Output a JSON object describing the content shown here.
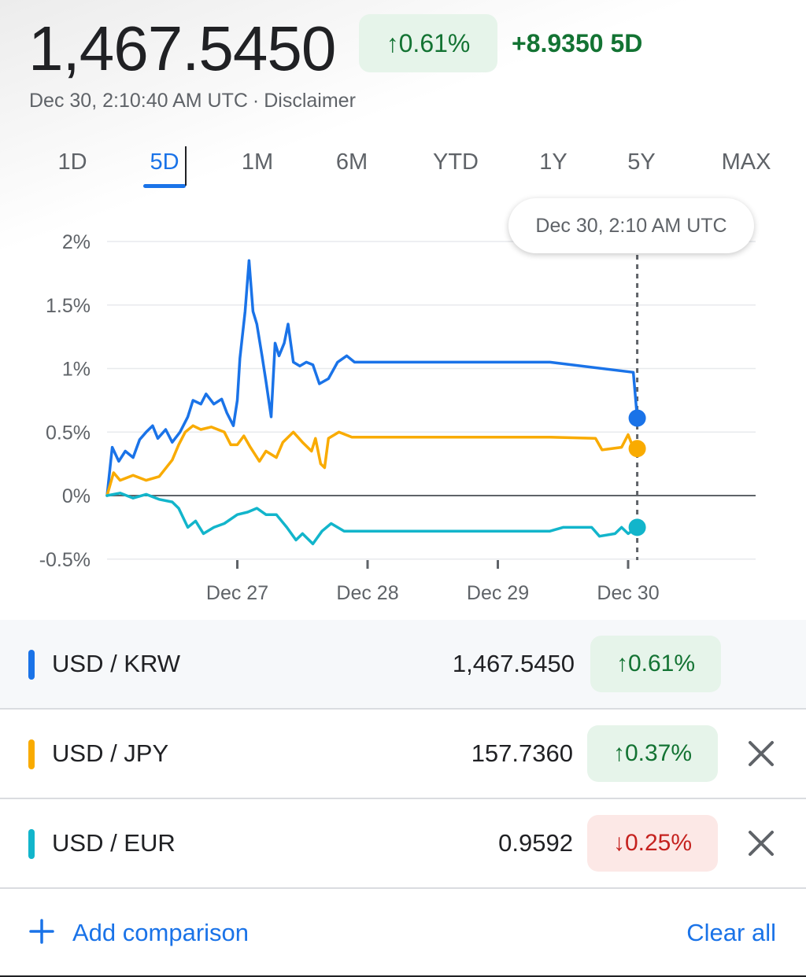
{
  "header": {
    "price": "1,467.5450",
    "pct_change": "0.61%",
    "pct_arrow": "↑",
    "abs_change": "+8.9350 5D",
    "timestamp": "Dec 30, 2:10:40 AM UTC",
    "separator": "·",
    "disclaimer": "Disclaimer"
  },
  "ranges": [
    {
      "label": "1D",
      "active": false
    },
    {
      "label": "5D",
      "active": true
    },
    {
      "label": "1M",
      "active": false
    },
    {
      "label": "6M",
      "active": false
    },
    {
      "label": "YTD",
      "active": false
    },
    {
      "label": "1Y",
      "active": false
    },
    {
      "label": "5Y",
      "active": false
    },
    {
      "label": "MAX",
      "active": false
    }
  ],
  "tooltip": "Dec 30, 2:10 AM UTC",
  "chart_data": {
    "type": "line",
    "y_tick_labels": [
      "2%",
      "1.5%",
      "1%",
      "0.5%",
      "0%",
      "-0.5%"
    ],
    "y_ticks": [
      2,
      1.5,
      1,
      0.5,
      0,
      -0.5
    ],
    "ylim": [
      -0.5,
      2
    ],
    "x_tick_labels": [
      "Dec 27",
      "Dec 28",
      "Dec 29",
      "Dec 30"
    ],
    "x_ticks": [
      1,
      2,
      3,
      4
    ],
    "xlim": [
      0,
      4.07
    ],
    "cursor_x": 4.07,
    "grid": true,
    "series": [
      {
        "name": "USD / KRW",
        "color": "#1a73e8",
        "points": [
          [
            0,
            0
          ],
          [
            0.04,
            0.38
          ],
          [
            0.09,
            0.27
          ],
          [
            0.14,
            0.35
          ],
          [
            0.2,
            0.3
          ],
          [
            0.25,
            0.44
          ],
          [
            0.3,
            0.5
          ],
          [
            0.35,
            0.55
          ],
          [
            0.39,
            0.45
          ],
          [
            0.45,
            0.52
          ],
          [
            0.5,
            0.42
          ],
          [
            0.56,
            0.5
          ],
          [
            0.62,
            0.62
          ],
          [
            0.66,
            0.75
          ],
          [
            0.72,
            0.72
          ],
          [
            0.76,
            0.8
          ],
          [
            0.82,
            0.72
          ],
          [
            0.88,
            0.76
          ],
          [
            0.92,
            0.65
          ],
          [
            0.97,
            0.55
          ],
          [
            1.0,
            0.75
          ],
          [
            1.02,
            1.08
          ],
          [
            1.06,
            1.45
          ],
          [
            1.09,
            1.85
          ],
          [
            1.12,
            1.45
          ],
          [
            1.15,
            1.35
          ],
          [
            1.19,
            1.1
          ],
          [
            1.22,
            0.9
          ],
          [
            1.26,
            0.62
          ],
          [
            1.29,
            1.2
          ],
          [
            1.32,
            1.1
          ],
          [
            1.36,
            1.2
          ],
          [
            1.39,
            1.35
          ],
          [
            1.43,
            1.05
          ],
          [
            1.48,
            1.02
          ],
          [
            1.53,
            1.05
          ],
          [
            1.58,
            1.03
          ],
          [
            1.63,
            0.88
          ],
          [
            1.7,
            0.92
          ],
          [
            1.77,
            1.05
          ],
          [
            1.84,
            1.1
          ],
          [
            1.9,
            1.05
          ],
          [
            2.5,
            1.05
          ],
          [
            3.4,
            1.05
          ],
          [
            4.04,
            0.97
          ],
          [
            4.07,
            0.61
          ]
        ]
      },
      {
        "name": "USD / JPY",
        "color": "#f9ab00",
        "points": [
          [
            0,
            0
          ],
          [
            0.05,
            0.18
          ],
          [
            0.1,
            0.12
          ],
          [
            0.2,
            0.16
          ],
          [
            0.3,
            0.12
          ],
          [
            0.4,
            0.15
          ],
          [
            0.5,
            0.28
          ],
          [
            0.55,
            0.4
          ],
          [
            0.6,
            0.5
          ],
          [
            0.66,
            0.55
          ],
          [
            0.72,
            0.52
          ],
          [
            0.8,
            0.54
          ],
          [
            0.9,
            0.5
          ],
          [
            0.95,
            0.4
          ],
          [
            1.0,
            0.4
          ],
          [
            1.05,
            0.47
          ],
          [
            1.1,
            0.38
          ],
          [
            1.17,
            0.27
          ],
          [
            1.22,
            0.35
          ],
          [
            1.3,
            0.3
          ],
          [
            1.35,
            0.42
          ],
          [
            1.43,
            0.5
          ],
          [
            1.5,
            0.42
          ],
          [
            1.57,
            0.35
          ],
          [
            1.6,
            0.45
          ],
          [
            1.64,
            0.25
          ],
          [
            1.67,
            0.22
          ],
          [
            1.7,
            0.45
          ],
          [
            1.78,
            0.5
          ],
          [
            1.88,
            0.46
          ],
          [
            2.4,
            0.46
          ],
          [
            3.4,
            0.46
          ],
          [
            3.75,
            0.45
          ],
          [
            3.8,
            0.36
          ],
          [
            3.95,
            0.38
          ],
          [
            4.0,
            0.48
          ],
          [
            4.03,
            0.4
          ],
          [
            4.07,
            0.37
          ]
        ]
      },
      {
        "name": "USD / EUR",
        "color": "#12b5cb",
        "points": [
          [
            0,
            0
          ],
          [
            0.1,
            0.02
          ],
          [
            0.2,
            -0.02
          ],
          [
            0.3,
            0.01
          ],
          [
            0.4,
            -0.03
          ],
          [
            0.5,
            -0.05
          ],
          [
            0.55,
            -0.1
          ],
          [
            0.62,
            -0.25
          ],
          [
            0.68,
            -0.2
          ],
          [
            0.74,
            -0.3
          ],
          [
            0.82,
            -0.25
          ],
          [
            0.9,
            -0.22
          ],
          [
            1.0,
            -0.15
          ],
          [
            1.08,
            -0.13
          ],
          [
            1.15,
            -0.1
          ],
          [
            1.22,
            -0.15
          ],
          [
            1.3,
            -0.15
          ],
          [
            1.38,
            -0.25
          ],
          [
            1.45,
            -0.35
          ],
          [
            1.5,
            -0.3
          ],
          [
            1.58,
            -0.38
          ],
          [
            1.65,
            -0.28
          ],
          [
            1.72,
            -0.22
          ],
          [
            1.82,
            -0.28
          ],
          [
            1.9,
            -0.28
          ],
          [
            2.5,
            -0.28
          ],
          [
            3.4,
            -0.28
          ],
          [
            3.5,
            -0.25
          ],
          [
            3.72,
            -0.25
          ],
          [
            3.78,
            -0.32
          ],
          [
            3.9,
            -0.3
          ],
          [
            3.95,
            -0.25
          ],
          [
            4.0,
            -0.3
          ],
          [
            4.07,
            -0.25
          ]
        ]
      }
    ]
  },
  "comparisons": [
    {
      "pair": "USD / KRW",
      "color": "#1a73e8",
      "value": "1,467.5450",
      "arrow": "↑",
      "change": "0.61%",
      "direction": "up",
      "removable": false
    },
    {
      "pair": "USD / JPY",
      "color": "#f9ab00",
      "value": "157.7360",
      "arrow": "↑",
      "change": "0.37%",
      "direction": "up",
      "removable": true
    },
    {
      "pair": "USD / EUR",
      "color": "#12b5cb",
      "value": "0.9592",
      "arrow": "↓",
      "change": "0.25%",
      "direction": "down",
      "removable": true
    }
  ],
  "footer": {
    "add_icon": "plus-icon",
    "add_label": "Add comparison",
    "clear_label": "Clear all"
  }
}
